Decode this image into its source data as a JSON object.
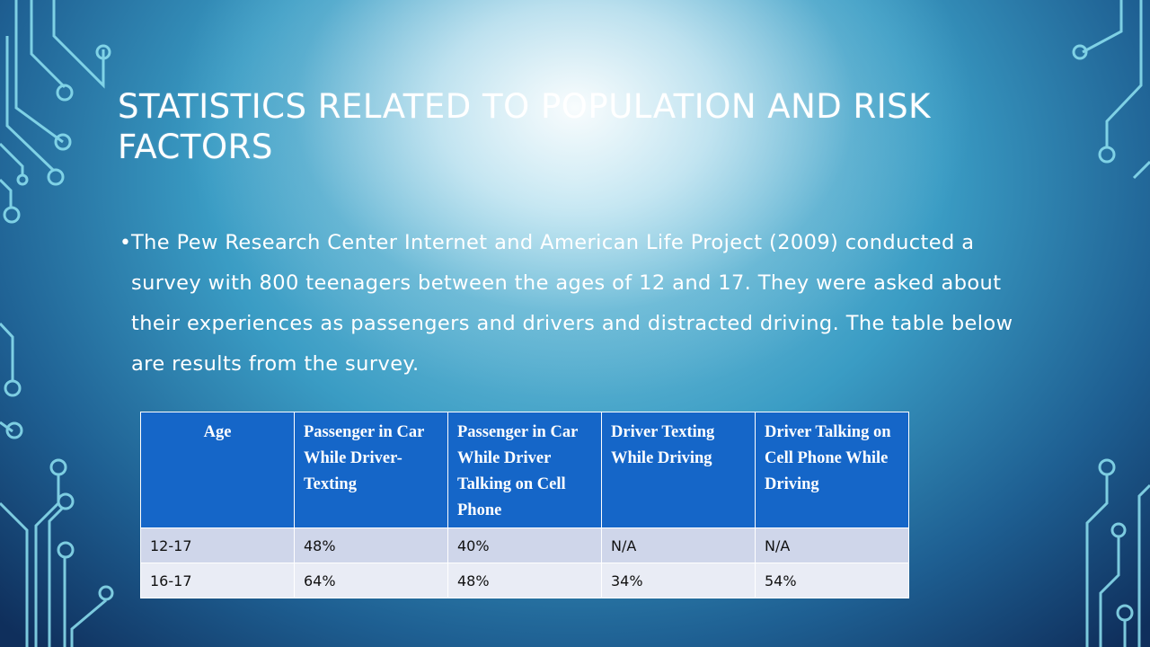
{
  "slide": {
    "title": "STATISTICS RELATED TO POPULATION AND RISK FACTORS",
    "bullet": "The Pew Research Center Internet and American Life Project (2009) conducted a survey with 800 teenagers between the ages of 12 and 17. They were asked about their experiences as passengers and drivers and distracted driving. The table below are results from the survey.",
    "bullet_symbol": "•"
  },
  "table": {
    "headers": [
      "Age",
      "Passenger in Car  While Driver-Texting",
      "Passenger  in Car While Driver Talking on Cell Phone",
      "Driver Texting While Driving",
      "Driver Talking on Cell Phone While Driving"
    ],
    "rows": [
      [
        "12-17",
        "48%",
        "40%",
        "N/A",
        "N/A"
      ],
      [
        "16-17",
        "64%",
        "48%",
        "34%",
        "54%"
      ]
    ]
  },
  "colors": {
    "header_bg": "#1566c8",
    "row_odd": "#cfd6ea",
    "row_even": "#e9ecf5",
    "text": "#ffffff"
  }
}
